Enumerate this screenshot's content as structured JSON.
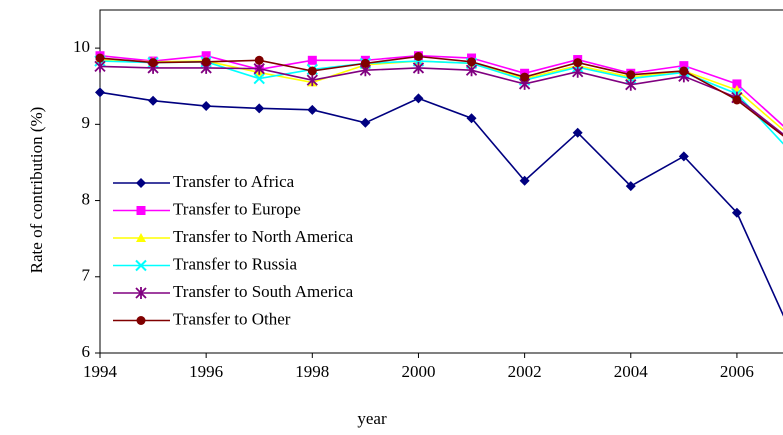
{
  "chart_data": {
    "type": "line",
    "x_label": "year",
    "y_label": "Rate of contribution (%)",
    "x": [
      1994,
      1995,
      1996,
      1997,
      1998,
      1999,
      2000,
      2001,
      2002,
      2003,
      2004,
      2005,
      2006,
      2007
    ],
    "xlim": [
      1994,
      2007
    ],
    "xticks": [
      1994,
      1996,
      1998,
      2000,
      2002,
      2004,
      2006
    ],
    "ylim": [
      6,
      10.5
    ],
    "yticks": [
      6,
      7,
      8,
      9,
      10
    ],
    "legend": "left",
    "series": [
      {
        "name": "Transfer to Africa",
        "color": "#000080",
        "marker": "diamond",
        "values": [
          9.42,
          9.31,
          9.24,
          9.21,
          9.19,
          9.02,
          9.34,
          9.08,
          8.26,
          8.89,
          8.19,
          8.58,
          7.84,
          6.3
        ]
      },
      {
        "name": "Transfer to Europe",
        "color": "#ff00ff",
        "marker": "square",
        "values": [
          9.9,
          9.83,
          9.9,
          9.72,
          9.84,
          9.84,
          9.9,
          9.87,
          9.67,
          9.85,
          9.67,
          9.77,
          9.53,
          8.9
        ]
      },
      {
        "name": "Transfer to North America",
        "color": "#ffff00",
        "marker": "triangle",
        "values": [
          9.85,
          9.82,
          9.83,
          9.68,
          9.55,
          9.78,
          9.83,
          9.8,
          9.6,
          9.77,
          9.62,
          9.7,
          9.45,
          8.85
        ]
      },
      {
        "name": "Transfer to Russia",
        "color": "#00ffff",
        "marker": "x",
        "values": [
          9.83,
          9.81,
          9.82,
          9.6,
          9.72,
          9.8,
          9.83,
          9.8,
          9.58,
          9.75,
          9.6,
          9.68,
          9.4,
          8.65
        ]
      },
      {
        "name": "Transfer to South America",
        "color": "#800080",
        "marker": "star",
        "values": [
          9.76,
          9.74,
          9.74,
          9.73,
          9.58,
          9.71,
          9.74,
          9.71,
          9.53,
          9.69,
          9.52,
          9.63,
          9.35,
          8.8
        ]
      },
      {
        "name": "Transfer to Other",
        "color": "#800000",
        "marker": "circle",
        "values": [
          9.87,
          9.81,
          9.82,
          9.84,
          9.7,
          9.8,
          9.89,
          9.82,
          9.62,
          9.81,
          9.65,
          9.7,
          9.32,
          8.78
        ]
      }
    ]
  }
}
